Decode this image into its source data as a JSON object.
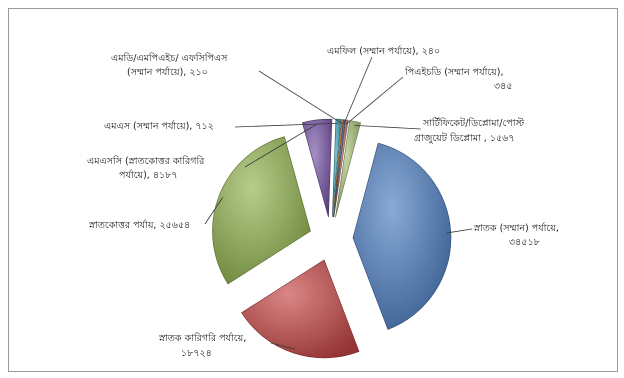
{
  "chart_data": {
    "type": "pie",
    "title": "",
    "exploded": true,
    "style": "3d",
    "slices": [
      {
        "label": "স্নাতক (সম্মান) পর্যায়ে, ৩৪৫১৮",
        "value": 34518,
        "color": "#4a7cc0"
      },
      {
        "label": "স্নাতক কারিগরি পর্যায়ে, ১৮৭২৪",
        "value": 18724,
        "color": "#c64545"
      },
      {
        "label": "স্নাতকোত্তর পর্যায়, ২৫৬৫৪",
        "value": 25654,
        "color": "#90b24d"
      },
      {
        "label": "এমএসসি (স্নাতকোত্তর কারিগরি পর্যায়ে), ৪১৮৭",
        "value": 4187,
        "color": "#7653a6"
      },
      {
        "label": "এমএস (সম্মান পর্যায়ে), ৭১২",
        "value": 712,
        "color": "#3aa3bd"
      },
      {
        "label": "এমডি/এমপিএইচ/ এফসিপিএস (সম্মান পর্যায়ে), ২১০",
        "value": 210,
        "color": "#e08a3c"
      },
      {
        "label": "এমফিল (সম্মান পর্যায়ে), ২৪০",
        "value": 240,
        "color": "#5b7fa8"
      },
      {
        "label": "পিএইচডি (সম্মান পর্যায়ে), ৩৪৫",
        "value": 345,
        "color": "#c07a78"
      },
      {
        "label": "সার্টিফিকেট/ডিপ্লোমা/পোস্ট গ্রাজুয়েট ডিপ্লোমা, ১৫৬৭",
        "value": 1567,
        "color": "#a9c179"
      }
    ]
  },
  "labels": {
    "s0_l1": "স্নাতক (সম্মান) পর্যায়ে,",
    "s0_l2": "৩৪৫১৮",
    "s1_l1": "স্নাতক কারিগরি পর্যায়ে,",
    "s1_l2": "১৮৭২৪",
    "s2_l1": "স্নাতকোত্তর পর্যায়, ২৫৬৫৪",
    "s3_l1": "এমএসসি (স্নাতকোত্তর কারিগরি",
    "s3_l2": "পর্যায়ে), ৪১৮৭",
    "s4_l1": "এমএস (সম্মান পর্যায়ে), ৭১২",
    "s5_l1": "এমডি/এমপিএইচ/ এফসিপিএস",
    "s5_l2": "(সম্মান পর্যায়ে), ২১০",
    "s6_l1": "এমফিল (সম্মান পর্যায়ে), ২৪০",
    "s7_l1": "পিএইচডি (সম্মান পর্যায়ে),",
    "s7_l2": "৩৪৫",
    "s8_l1": "সার্টিফিকেট/ডিপ্লোমা/পোস্ট",
    "s8_l2": "গ্রাজুয়েট ডিপ্লোমা , ১৫৬৭"
  }
}
